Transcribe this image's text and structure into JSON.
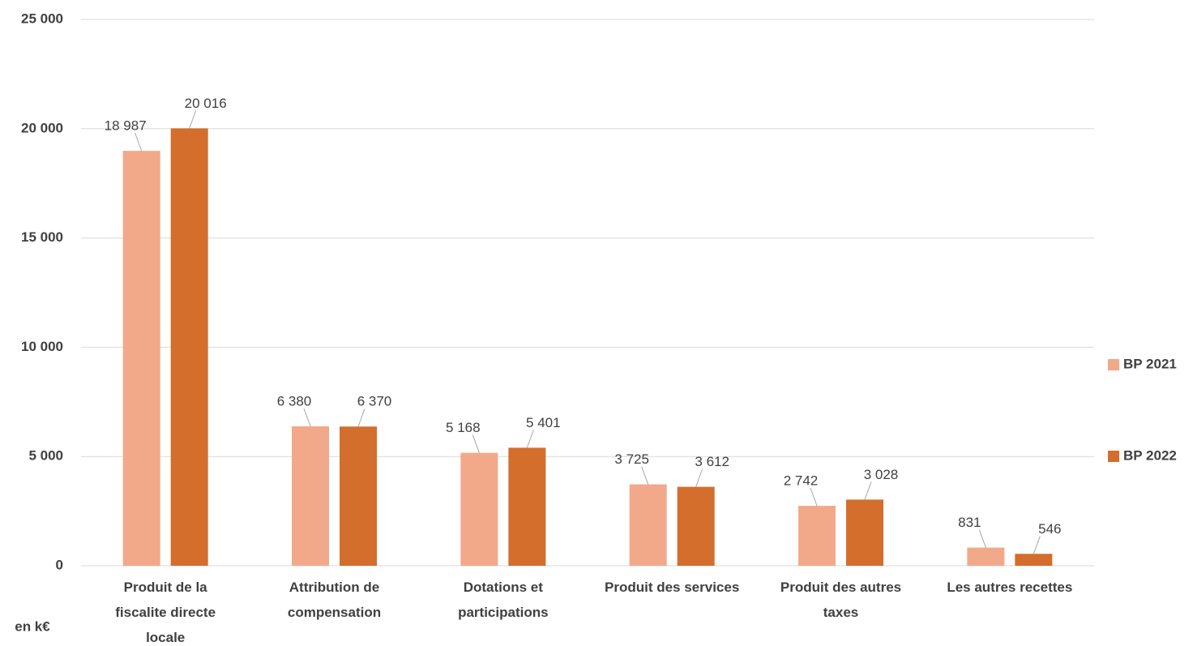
{
  "chart_data": {
    "type": "bar",
    "y_label": "en k€",
    "categories": [
      "Produit de la fiscalite directe locale",
      "Attribution de compensation",
      "Dotations et participations",
      "Produit des services",
      "Produit des autres taxes",
      "Les autres recettes"
    ],
    "series": [
      {
        "name": "BP 2021",
        "color": "#f2a98a",
        "values": [
          18987,
          6380,
          5168,
          3725,
          2742,
          831
        ],
        "value_labels": [
          "18 987",
          "6 380",
          "5 168",
          "3 725",
          "2 742",
          "831"
        ]
      },
      {
        "name": "BP 2022",
        "color": "#d36e2c",
        "values": [
          20016,
          6370,
          5401,
          3612,
          3028,
          546
        ],
        "value_labels": [
          "20 016",
          "6 370",
          "5 401",
          "3 612",
          "3 028",
          "546"
        ]
      }
    ],
    "ylim": [
      0,
      25000
    ],
    "yticks": [
      {
        "value": 0,
        "label": "0"
      },
      {
        "value": 5000,
        "label": "5 000"
      },
      {
        "value": 10000,
        "label": "10 000"
      },
      {
        "value": 15000,
        "label": "15 000"
      },
      {
        "value": 20000,
        "label": "20 000"
      },
      {
        "value": 25000,
        "label": "25 000"
      }
    ],
    "grid": true,
    "legend": "right"
  }
}
